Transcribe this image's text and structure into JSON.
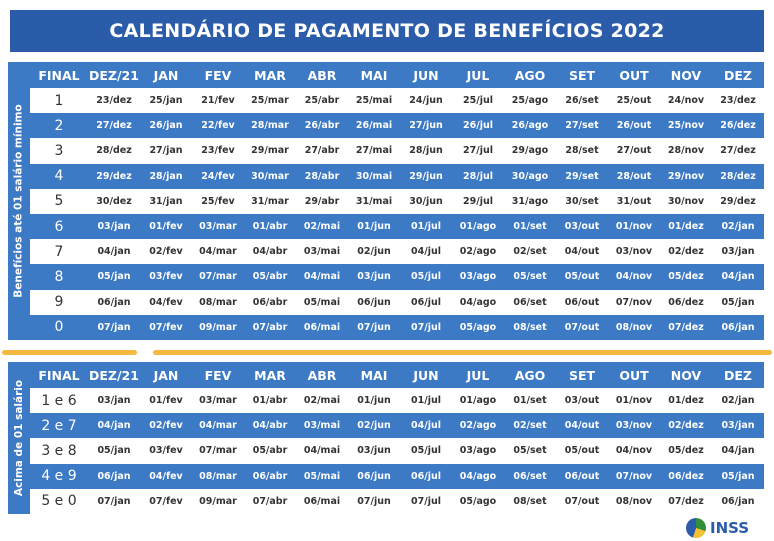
{
  "title": "CALENDÁRIO DE PAGAMENTO DE BENEFÍCIOS 2022",
  "headers": [
    "FINAL",
    "DEZ/21",
    "JAN",
    "FEV",
    "MAR",
    "ABR",
    "MAI",
    "JUN",
    "JUL",
    "AGO",
    "SET",
    "OUT",
    "NOV",
    "DEZ"
  ],
  "top": {
    "side_label": "Benefícios até 01 salário mínimo",
    "rows": [
      [
        "1",
        "23/dez",
        "25/jan",
        "21/fev",
        "25/mar",
        "25/abr",
        "25/mai",
        "24/jun",
        "25/jul",
        "25/ago",
        "26/set",
        "25/out",
        "24/nov",
        "23/dez"
      ],
      [
        "2",
        "27/dez",
        "26/jan",
        "22/fev",
        "28/mar",
        "26/abr",
        "26/mai",
        "27/jun",
        "26/jul",
        "26/ago",
        "27/set",
        "26/out",
        "25/nov",
        "26/dez"
      ],
      [
        "3",
        "28/dez",
        "27/jan",
        "23/fev",
        "29/mar",
        "27/abr",
        "27/mai",
        "28/jun",
        "27/jul",
        "29/ago",
        "28/set",
        "27/out",
        "28/nov",
        "27/dez"
      ],
      [
        "4",
        "29/dez",
        "28/jan",
        "24/fev",
        "30/mar",
        "28/abr",
        "30/mai",
        "29/jun",
        "28/jul",
        "30/ago",
        "29/set",
        "28/out",
        "29/nov",
        "28/dez"
      ],
      [
        "5",
        "30/dez",
        "31/jan",
        "25/fev",
        "31/mar",
        "29/abr",
        "31/mai",
        "30/jun",
        "29/jul",
        "31/ago",
        "30/set",
        "31/out",
        "30/nov",
        "29/dez"
      ],
      [
        "6",
        "03/jan",
        "01/fev",
        "03/mar",
        "01/abr",
        "02/mai",
        "01/jun",
        "01/jul",
        "01/ago",
        "01/set",
        "03/out",
        "01/nov",
        "01/dez",
        "02/jan"
      ],
      [
        "7",
        "04/jan",
        "02/fev",
        "04/mar",
        "04/abr",
        "03/mai",
        "02/jun",
        "04/jul",
        "02/ago",
        "02/set",
        "04/out",
        "03/nov",
        "02/dez",
        "03/jan"
      ],
      [
        "8",
        "05/jan",
        "03/fev",
        "07/mar",
        "05/abr",
        "04/mai",
        "03/jun",
        "05/jul",
        "03/ago",
        "05/set",
        "05/out",
        "04/nov",
        "05/dez",
        "04/jan"
      ],
      [
        "9",
        "06/jan",
        "04/fev",
        "08/mar",
        "06/abr",
        "05/mai",
        "06/jun",
        "06/jul",
        "04/ago",
        "06/set",
        "06/out",
        "07/nov",
        "06/dez",
        "05/jan"
      ],
      [
        "0",
        "07/jan",
        "07/fev",
        "09/mar",
        "07/abr",
        "06/mai",
        "07/jun",
        "07/jul",
        "05/ago",
        "08/set",
        "07/out",
        "08/nov",
        "07/dez",
        "06/jan"
      ]
    ]
  },
  "bottom": {
    "side_label": "Acima de 01 salário",
    "rows": [
      [
        "1 e 6",
        "03/jan",
        "01/fev",
        "03/mar",
        "01/abr",
        "02/mai",
        "01/jun",
        "01/jul",
        "01/ago",
        "01/set",
        "03/out",
        "01/nov",
        "01/dez",
        "02/jan"
      ],
      [
        "2 e 7",
        "04/jan",
        "02/fev",
        "04/mar",
        "04/abr",
        "03/mai",
        "02/jun",
        "04/jul",
        "02/ago",
        "02/set",
        "04/out",
        "03/nov",
        "02/dez",
        "03/jan"
      ],
      [
        "3 e 8",
        "05/jan",
        "03/fev",
        "07/mar",
        "05/abr",
        "04/mai",
        "03/jun",
        "05/jul",
        "03/ago",
        "05/set",
        "05/out",
        "04/nov",
        "05/dez",
        "04/jan"
      ],
      [
        "4 e 9",
        "06/jan",
        "04/fev",
        "08/mar",
        "06/abr",
        "05/mai",
        "06/jun",
        "06/jul",
        "04/ago",
        "06/set",
        "06/out",
        "07/nov",
        "06/dez",
        "05/jan"
      ],
      [
        "5 e 0",
        "07/jan",
        "07/fev",
        "09/mar",
        "07/abr",
        "06/mai",
        "07/jun",
        "07/jul",
        "05/ago",
        "08/set",
        "07/out",
        "08/nov",
        "07/dez",
        "06/jan"
      ]
    ]
  },
  "logo": "INSS",
  "colors": {
    "title_bg": "#2b5ca9",
    "row_blue": "#3c7ac6",
    "separator": "#f5b942"
  }
}
